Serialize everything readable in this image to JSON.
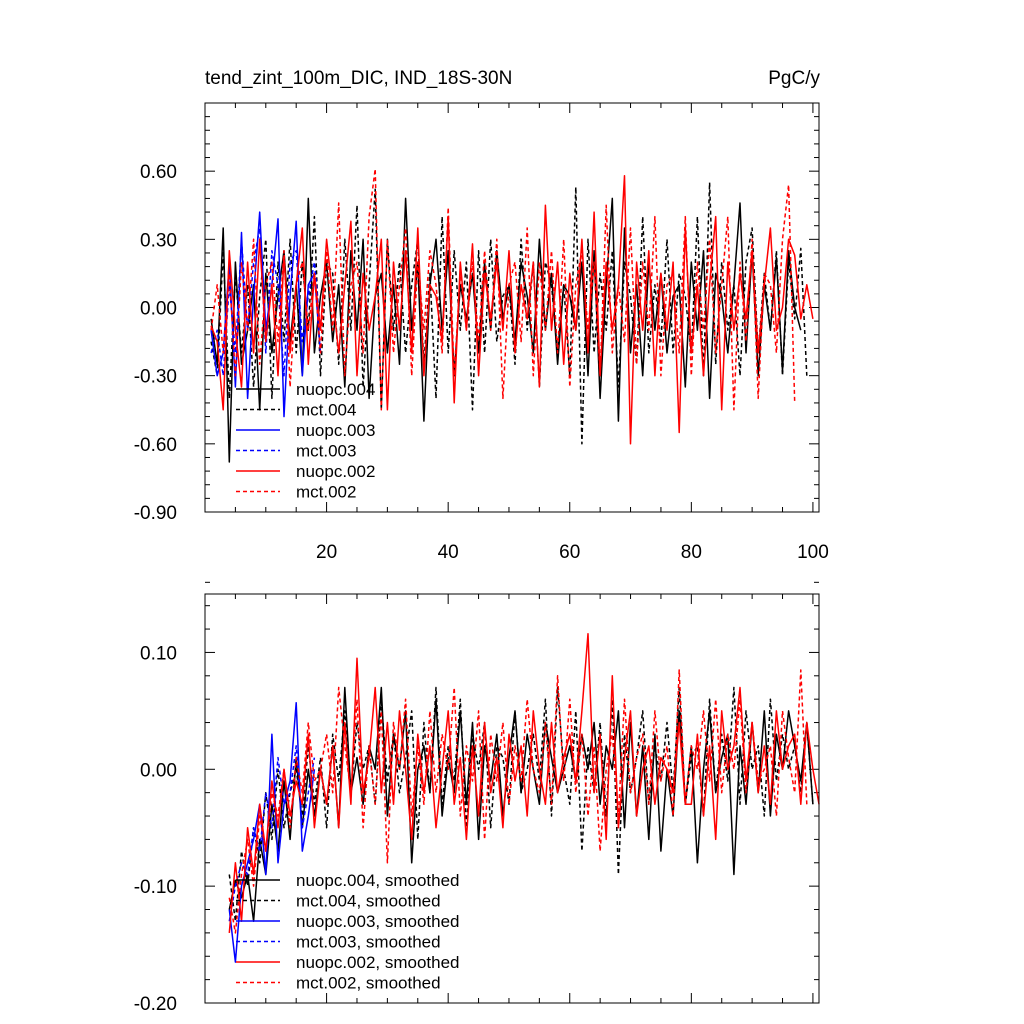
{
  "chart_data": [
    {
      "type": "line",
      "title": "tend_zint_100m_DIC, IND_18S-30N",
      "units": "PgC/y",
      "xlabel": "",
      "ylabel": "",
      "xlim": [
        0,
        101
      ],
      "ylim": [
        -0.9,
        0.9
      ],
      "xticks": [
        20,
        40,
        60,
        80,
        100
      ],
      "xtick_labels": [
        "20",
        "40",
        "60",
        "80",
        "100"
      ],
      "yticks": [
        0.6,
        0.3,
        0.0,
        -0.3,
        -0.6,
        -0.9
      ],
      "ytick_labels": [
        "0.60",
        "0.30",
        "0.00",
        "-0.30",
        "-0.60",
        "-0.90"
      ],
      "legend_position": "bottom-left",
      "series": [
        {
          "name": "nuopc.004",
          "color": "#000000",
          "dash": "solid",
          "x_start": 1,
          "values": [
            -0.05,
            -0.25,
            0.35,
            -0.68,
            0.2,
            -0.25,
            -0.1,
            0.1,
            -0.45,
            0.15,
            -0.2,
            0.05,
            0.25,
            -0.15,
            0.1,
            -0.3,
            0.48,
            -0.2,
            0.05,
            0.2,
            -0.15,
            0.1,
            -0.35,
            0.25,
            -0.1,
            0.3,
            -0.4,
            0.05,
            0.15,
            -0.2,
            0.1,
            -0.25,
            0.48,
            -0.1,
            0.2,
            -0.5,
            0.1,
            0.3,
            -0.1,
            0.25,
            -0.3,
            0.1,
            -0.05,
            0.15,
            -0.2,
            0.2,
            -0.1,
            0.25,
            -0.05,
            0.1,
            -0.15,
            0.2,
            0.05,
            -0.2,
            0.3,
            -0.1,
            0.15,
            -0.25,
            0.1,
            0.05,
            -0.1,
            0.2,
            -0.3,
            0.25,
            -0.4,
            0.1,
            0.48,
            -0.5,
            0.35,
            -0.2,
            0.1,
            -0.3,
            0.2,
            -0.1,
            0.15,
            -0.2,
            0.05,
            0.1,
            -0.35,
            0.2,
            -0.1,
            0.25,
            -0.4,
            0.15,
            0.05,
            -0.2,
            0.1,
            0.46,
            -0.2,
            0.25,
            -0.3,
            0.1,
            -0.1,
            0.22,
            -0.28,
            0.25,
            0.0,
            -0.1
          ]
        },
        {
          "name": "mct.004",
          "color": "#000000",
          "dash": "dashed",
          "x_start": 1,
          "values": [
            -0.15,
            -0.3,
            0.25,
            -0.4,
            0.15,
            -0.2,
            0.1,
            -0.35,
            0.05,
            0.3,
            -0.4,
            0.2,
            -0.15,
            0.3,
            -0.2,
            0.2,
            -0.1,
            0.4,
            -0.3,
            0.2,
            0.15,
            -0.25,
            0.3,
            -0.1,
            0.45,
            -0.35,
            0.1,
            0.52,
            -0.45,
            0.3,
            -0.1,
            0.2,
            -0.2,
            0.1,
            0.3,
            -0.25,
            0.15,
            -0.4,
            0.4,
            -0.2,
            0.25,
            -0.1,
            0.2,
            -0.45,
            0.25,
            -0.2,
            0.3,
            -0.15,
            0.05,
            0.1,
            -0.25,
            0.3,
            -0.1,
            0.2,
            -0.35,
            0.2,
            0.1,
            -0.2,
            0.1,
            -0.3,
            0.53,
            -0.6,
            0.3,
            -0.2,
            0.15,
            -0.1,
            0.25,
            -0.35,
            0.2,
            0.05,
            -0.25,
            0.4,
            -0.2,
            0.1,
            -0.15,
            0.3,
            -0.2,
            0.15,
            0.05,
            -0.2,
            0.4,
            -0.3,
            0.55,
            -0.25,
            0.2,
            -0.1,
            0.1,
            -0.3,
            0.2,
            0.35,
            -0.2,
            0.15,
            -0.1,
            0.25,
            -0.3,
            0.2,
            -0.05,
            0.26,
            -0.3
          ]
        },
        {
          "name": "nuopc.003",
          "color": "#0000ff",
          "dash": "solid",
          "x_start": 1,
          "values": [
            -0.1,
            -0.3,
            -0.2,
            0.2,
            -0.35,
            0.33,
            -0.4,
            0.05,
            0.42,
            -0.1,
            0.1,
            0.39,
            -0.48,
            0.05,
            0.38,
            -0.3,
            0.1,
            0.15,
            -0.2
          ]
        },
        {
          "name": "mct.003",
          "color": "#0000ff",
          "dash": "dashed",
          "x_start": 1,
          "values": [
            -0.2,
            -0.1,
            -0.3,
            0.1,
            -0.2,
            0.3,
            -0.1,
            0.2,
            0.35,
            -0.2,
            0.25,
            0.1,
            -0.3,
            0.2,
            0.25,
            -0.15,
            0.05,
            0.2,
            -0.1
          ]
        },
        {
          "name": "nuopc.002",
          "color": "#ff0000",
          "dash": "solid",
          "x_start": 1,
          "values": [
            -0.08,
            -0.15,
            -0.45,
            0.25,
            -0.1,
            -0.35,
            0.2,
            -0.2,
            0.3,
            -0.15,
            0.1,
            -0.3,
            0.22,
            -0.2,
            0.1,
            0.35,
            -0.25,
            0.15,
            -0.1,
            0.3,
            0.05,
            -0.2,
            0.1,
            0.38,
            -0.3,
            0.15,
            -0.1,
            0.05,
            0.3,
            -0.45,
            0.2,
            -0.1,
            0.25,
            -0.2,
            0.35,
            -0.3,
            0.1,
            0.05,
            -0.15,
            0.4,
            -0.42,
            0.2,
            -0.1,
            0.28,
            -0.3,
            0.15,
            -0.05,
            0.2,
            -0.1,
            0.25,
            -0.2,
            0.1,
            -0.05,
            0.2,
            -0.35,
            0.45,
            -0.1,
            0.2,
            -0.25,
            0.15,
            -0.1,
            0.3,
            -0.2,
            0.42,
            -0.3,
            0.2,
            -0.1,
            0.1,
            0.58,
            -0.6,
            0.2,
            -0.1,
            0.25,
            -0.3,
            0.15,
            -0.1,
            0.2,
            -0.55,
            0.35,
            -0.2,
            0.1,
            -0.3,
            0.1,
            0.4,
            -0.45,
            0.2,
            -0.1,
            0.15,
            -0.05,
            0.25,
            -0.2,
            0.1,
            0.35,
            -0.1,
            0.0,
            0.3,
            0.23,
            -0.05,
            0.1,
            -0.05
          ]
        },
        {
          "name": "mct.002",
          "color": "#ff0000",
          "dash": "dashed",
          "x_start": 1,
          "values": [
            -0.1,
            0.1,
            -0.2,
            0.15,
            -0.3,
            0.2,
            -0.1,
            0.3,
            -0.25,
            0.1,
            0.2,
            -0.15,
            0.25,
            -0.35,
            0.1,
            0.2,
            -0.1,
            0.15,
            -0.2,
            0.25,
            -0.1,
            0.46,
            -0.3,
            0.1,
            0.2,
            -0.2,
            0.4,
            0.61,
            -0.45,
            0.3,
            -0.2,
            0.1,
            0.35,
            -0.3,
            0.2,
            -0.1,
            0.25,
            0.1,
            -0.2,
            0.44,
            -0.3,
            0.15,
            -0.1,
            0.2,
            -0.15,
            0.25,
            -0.1,
            0.3,
            -0.4,
            0.1,
            0.2,
            -0.15,
            0.35,
            -0.3,
            0.2,
            -0.1,
            0.25,
            -0.2,
            0.3,
            -0.35,
            0.1,
            0.25,
            -0.1,
            0.2,
            -0.3,
            0.45,
            -0.2,
            0.1,
            -0.15,
            0.35,
            -0.25,
            0.2,
            -0.1,
            0.4,
            -0.3,
            0.1,
            0.15,
            -0.2,
            0.4,
            -0.3,
            0.2,
            -0.1,
            0.3,
            -0.2,
            0.1,
            0.4,
            -0.45,
            0.2,
            -0.15,
            0.3,
            -0.4,
            0.15,
            0.1,
            -0.2,
            0.3,
            0.54,
            -0.42
          ]
        }
      ]
    },
    {
      "type": "line",
      "title": "",
      "xlabel": "",
      "ylabel": "",
      "xlim": [
        0,
        101
      ],
      "ylim": [
        -0.2,
        0.15
      ],
      "xticks": [
        20,
        40,
        60,
        80,
        100
      ],
      "xtick_labels": [],
      "yticks": [
        0.1,
        0.0,
        -0.1,
        -0.2
      ],
      "ytick_labels": [
        "0.10",
        "0.00",
        "-0.10",
        "-0.20"
      ],
      "legend_position": "bottom-left",
      "series": [
        {
          "name": "nuopc.004, smoothed",
          "color": "#000000",
          "dash": "solid",
          "x_start": 4,
          "values": [
            -0.12,
            -0.095,
            -0.11,
            -0.09,
            -0.13,
            -0.06,
            -0.09,
            -0.03,
            -0.07,
            -0.01,
            -0.06,
            0.01,
            -0.05,
            0.0,
            -0.04,
            0.0,
            -0.03,
            0.02,
            -0.05,
            0.07,
            -0.02,
            0.01,
            -0.03,
            0.02,
            0.0,
            0.07,
            -0.04,
            0.03,
            0.0,
            0.05,
            -0.08,
            0.0,
            0.02,
            -0.02,
            0.06,
            -0.04,
            0.01,
            -0.02,
            0.05,
            -0.03,
            0.04,
            -0.06,
            0.02,
            -0.01,
            0.03,
            -0.04,
            0.01,
            0.05,
            -0.02,
            0.03,
            0.0,
            -0.03,
            0.04,
            0.01,
            -0.02,
            0.0,
            0.02,
            -0.01,
            0.03,
            0.0,
            0.04,
            -0.03,
            0.02,
            0.0,
            0.05,
            -0.05,
            0.04,
            -0.04,
            0.02,
            -0.06,
            0.03,
            -0.07,
            0.0,
            -0.04,
            0.05,
            -0.03,
            0.02,
            -0.08,
            0.0,
            0.05,
            -0.02,
            0.01,
            0.03,
            -0.09,
            0.02,
            -0.03,
            0.04,
            -0.02,
            0.05,
            -0.04,
            0.03,
            0.0,
            0.05,
            0.02,
            -0.01,
            0.04,
            -0.03
          ]
        },
        {
          "name": "mct.004, smoothed",
          "color": "#000000",
          "dash": "dashed",
          "x_start": 4,
          "values": [
            -0.09,
            -0.13,
            -0.07,
            -0.1,
            -0.05,
            -0.08,
            -0.02,
            -0.06,
            0.0,
            -0.05,
            -0.02,
            0.0,
            -0.04,
            0.02,
            -0.03,
            0.01,
            -0.05,
            0.03,
            -0.01,
            0.05,
            -0.02,
            0.04,
            0.0,
            0.02,
            -0.03,
            0.06,
            -0.01,
            0.03,
            -0.02,
            0.01,
            0.05,
            -0.06,
            0.04,
            -0.02,
            0.07,
            -0.03,
            0.02,
            -0.01,
            0.06,
            -0.05,
            0.03,
            0.0,
            0.04,
            -0.05,
            0.02,
            0.01,
            -0.03,
            0.05,
            -0.02,
            0.0,
            0.03,
            -0.01,
            0.06,
            -0.04,
            0.07,
            0.0,
            -0.03,
            0.05,
            -0.07,
            0.02,
            -0.02,
            0.04,
            -0.04,
            0.06,
            -0.09,
            0.03,
            -0.02,
            0.01,
            0.05,
            -0.03,
            0.02,
            -0.01,
            0.04,
            -0.02,
            0.07,
            -0.03,
            0.01,
            0.02,
            -0.04,
            0.06,
            -0.02,
            0.03,
            -0.01,
            0.07,
            -0.03,
            0.05,
            0.0,
            0.02,
            -0.04,
            0.06,
            -0.01,
            0.03,
            0.0,
            0.02,
            -0.02,
            0.04,
            -0.03
          ]
        },
        {
          "name": "nuopc.003, smoothed",
          "color": "#0000ff",
          "dash": "solid",
          "x_start": 4,
          "values": [
            -0.12,
            -0.165,
            -0.1,
            -0.08,
            -0.06,
            -0.03,
            -0.09,
            0.03,
            -0.08,
            -0.03,
            -0.01,
            0.057,
            -0.07,
            -0.04,
            0.0
          ]
        },
        {
          "name": "mct.003, smoothed",
          "color": "#0000ff",
          "dash": "dashed",
          "x_start": 4,
          "values": [
            -0.13,
            -0.1,
            -0.08,
            -0.09,
            -0.05,
            -0.07,
            -0.02,
            -0.05,
            0.01,
            -0.03,
            -0.02,
            0.02,
            -0.05,
            -0.02,
            0.01
          ]
        },
        {
          "name": "nuopc.002, smoothed",
          "color": "#ff0000",
          "dash": "solid",
          "x_start": 4,
          "values": [
            -0.14,
            -0.08,
            -0.13,
            -0.05,
            -0.09,
            -0.03,
            -0.07,
            -0.01,
            -0.05,
            0.0,
            -0.04,
            -0.01,
            -0.03,
            0.03,
            -0.05,
            0.0,
            -0.03,
            0.02,
            -0.05,
            0.04,
            -0.03,
            0.095,
            -0.02,
            0.01,
            0.07,
            -0.02,
            0.04,
            -0.03,
            0.05,
            0.0,
            -0.06,
            0.03,
            -0.02,
            0.02,
            -0.05,
            0.0,
            0.05,
            -0.03,
            0.01,
            -0.06,
            0.02,
            -0.04,
            0.04,
            -0.02,
            0.01,
            -0.05,
            0.03,
            -0.01,
            0.02,
            -0.04,
            0.05,
            0.0,
            -0.03,
            0.04,
            -0.02,
            0.01,
            0.03,
            -0.01,
            0.05,
            0.116,
            -0.02,
            0.03,
            -0.06,
            0.08,
            -0.05,
            0.01,
            0.05,
            -0.04,
            0.0,
            0.02,
            -0.03,
            0.01,
            0.0,
            -0.02,
            0.04,
            -0.03,
            -0.03,
            0.03,
            -0.04,
            0.02,
            -0.06,
            0.05,
            0.0,
            0.02,
            0.07,
            -0.01,
            0.04,
            -0.02,
            0.02,
            -0.03,
            0.05,
            0.0,
            0.02,
            0.03,
            -0.03,
            0.04,
            0.0,
            -0.03
          ]
        },
        {
          "name": "mct.002, smoothed",
          "color": "#ff0000",
          "dash": "dashed",
          "x_start": 4,
          "values": [
            -0.11,
            -0.14,
            -0.09,
            -0.06,
            -0.1,
            -0.04,
            -0.07,
            -0.02,
            -0.04,
            0.0,
            -0.05,
            0.01,
            -0.02,
            0.04,
            -0.01,
            0.0,
            0.03,
            -0.02,
            0.07,
            0.02,
            -0.02,
            0.06,
            -0.05,
            0.02,
            -0.03,
            0.05,
            -0.08,
            0.04,
            0.0,
            0.06,
            -0.04,
            0.02,
            -0.03,
            0.05,
            -0.02,
            0.03,
            0.0,
            0.07,
            -0.04,
            0.02,
            -0.01,
            0.05,
            -0.06,
            0.03,
            -0.01,
            0.04,
            -0.03,
            0.02,
            -0.01,
            0.06,
            0.0,
            -0.02,
            0.04,
            -0.03,
            0.08,
            -0.01,
            0.06,
            -0.02,
            0.03,
            -0.04,
            0.02,
            -0.07,
            0.0,
            0.03,
            -0.04,
            0.06,
            -0.02,
            0.01,
            0.03,
            -0.03,
            0.05,
            -0.01,
            0.02,
            -0.04,
            0.085,
            -0.03,
            0.02,
            0.0,
            0.05,
            -0.01,
            0.06,
            -0.02,
            0.03,
            0.0,
            0.06,
            -0.02,
            0.04,
            -0.01,
            0.0,
            0.02,
            -0.04,
            0.05,
            0.01,
            -0.02,
            0.085,
            -0.03
          ]
        }
      ]
    }
  ]
}
